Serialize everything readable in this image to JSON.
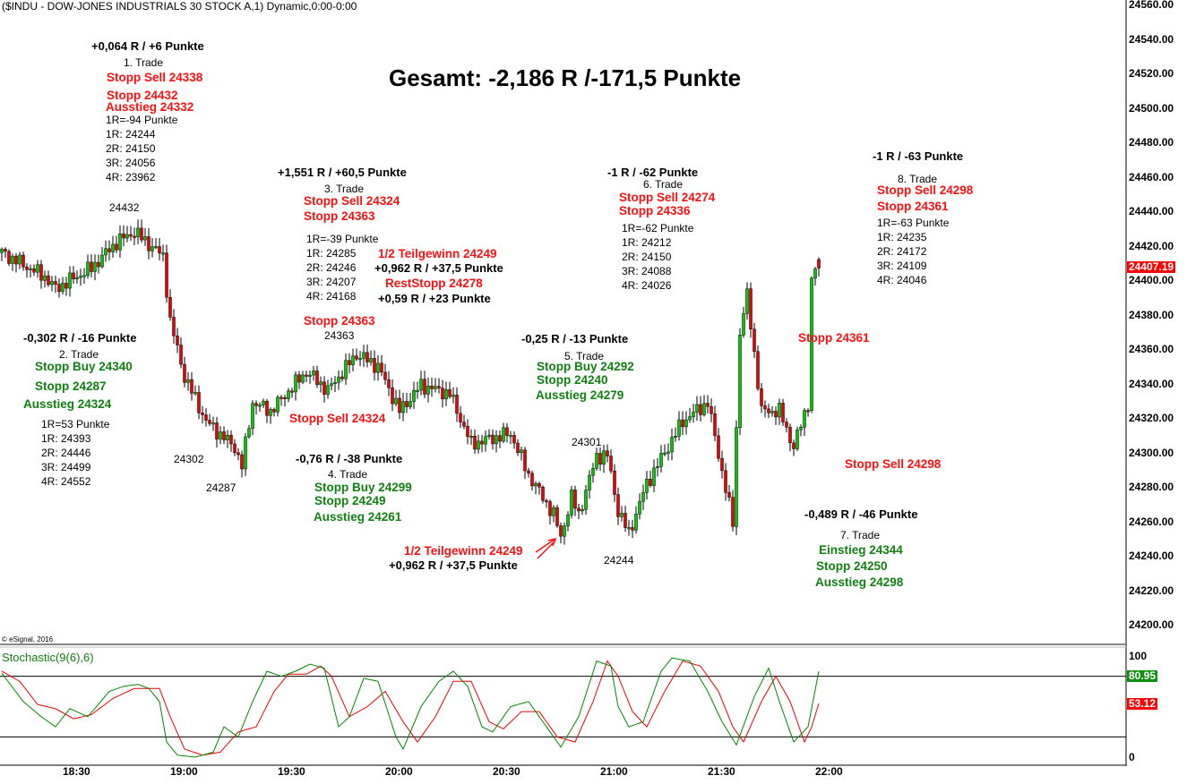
{
  "header": {
    "title": "($INDU - DOW-JONES INDUSTRIALS 30 STOCK A,1) Dynamic,0:00-0:00"
  },
  "total": "Gesamt: -2,186 R /-171,5 Punkte",
  "copyright": "© eSignal, 2016",
  "annotations": [
    {
      "text": "+0,064 R / +6 Punkte",
      "color": "black"
    },
    {
      "text": "1. Trade",
      "color": "black"
    },
    {
      "text": "Stopp Sell 24338",
      "color": "red"
    },
    {
      "text": "Stopp 24432",
      "color": "red"
    },
    {
      "text": "Ausstieg 24332",
      "color": "red"
    },
    {
      "text": "1R=-94 Punkte",
      "color": "black"
    },
    {
      "text": "1R: 24244",
      "color": "black"
    },
    {
      "text": "2R: 24150",
      "color": "black"
    },
    {
      "text": "3R: 24056",
      "color": "black"
    },
    {
      "text": "4R: 23962",
      "color": "black"
    },
    {
      "text": "24432",
      "color": "black"
    },
    {
      "text": "+1,551 R / +60,5 Punkte",
      "color": "black"
    },
    {
      "text": "3. Trade",
      "color": "black"
    },
    {
      "text": "Stopp Sell 24324",
      "color": "red"
    },
    {
      "text": "Stopp 24363",
      "color": "red"
    },
    {
      "text": "1R=-39 Punkte",
      "color": "black"
    },
    {
      "text": "1R: 24285",
      "color": "black"
    },
    {
      "text": "2R: 24246",
      "color": "black"
    },
    {
      "text": "3R: 24207",
      "color": "black"
    },
    {
      "text": "4R: 24168",
      "color": "black"
    },
    {
      "text": "1/2 Teilgewinn 24249",
      "color": "red"
    },
    {
      "text": "+0,962 R / +37,5 Punkte",
      "color": "black"
    },
    {
      "text": "RestStopp 24278",
      "color": "red"
    },
    {
      "text": "+0,59 R / +23 Punkte",
      "color": "black"
    },
    {
      "text": "Stopp 24363",
      "color": "red"
    },
    {
      "text": "24363",
      "color": "black"
    },
    {
      "text": "-0,302 R / -16 Punkte",
      "color": "black"
    },
    {
      "text": "2. Trade",
      "color": "black"
    },
    {
      "text": "Stopp Buy 24340",
      "color": "green"
    },
    {
      "text": "Stopp 24287",
      "color": "green"
    },
    {
      "text": "Ausstieg 24324",
      "color": "green"
    },
    {
      "text": "1R=53 Punkte",
      "color": "black"
    },
    {
      "text": "1R: 24393",
      "color": "black"
    },
    {
      "text": "2R: 24446",
      "color": "black"
    },
    {
      "text": "3R: 24499",
      "color": "black"
    },
    {
      "text": "4R: 24552",
      "color": "black"
    },
    {
      "text": "24302",
      "color": "black"
    },
    {
      "text": "24287",
      "color": "black"
    },
    {
      "text": "Stopp Sell 24324",
      "color": "red"
    },
    {
      "text": "-0,76 R / -38 Punkte",
      "color": "black"
    },
    {
      "text": "4. Trade",
      "color": "black"
    },
    {
      "text": "Stopp Buy 24299",
      "color": "green"
    },
    {
      "text": "Stopp 24249",
      "color": "green"
    },
    {
      "text": "Ausstieg 24261",
      "color": "green"
    },
    {
      "text": "1/2 Teilgewinn 24249",
      "color": "red"
    },
    {
      "text": "+0,962 R / +37,5 Punkte",
      "color": "black"
    },
    {
      "text": "-0,25 R / -13 Punkte",
      "color": "black"
    },
    {
      "text": "5. Trade",
      "color": "black"
    },
    {
      "text": "Stopp Buy 24292",
      "color": "green"
    },
    {
      "text": "Stopp 24240",
      "color": "green"
    },
    {
      "text": "Ausstieg 24279",
      "color": "green"
    },
    {
      "text": "24301",
      "color": "black"
    },
    {
      "text": "24244",
      "color": "black"
    },
    {
      "text": "-1 R / -62 Punkte",
      "color": "black"
    },
    {
      "text": "6. Trade",
      "color": "black"
    },
    {
      "text": "Stopp Sell 24274",
      "color": "red"
    },
    {
      "text": "Stopp 24336",
      "color": "red"
    },
    {
      "text": "1R=-62 Punkte",
      "color": "black"
    },
    {
      "text": "1R: 24212",
      "color": "black"
    },
    {
      "text": "2R: 24150",
      "color": "black"
    },
    {
      "text": "3R: 24088",
      "color": "black"
    },
    {
      "text": "4R: 24026",
      "color": "black"
    },
    {
      "text": "-1 R / -63 Punkte",
      "color": "black"
    },
    {
      "text": "8. Trade",
      "color": "black"
    },
    {
      "text": "Stopp Sell 24298",
      "color": "red"
    },
    {
      "text": "Stopp 24361",
      "color": "red"
    },
    {
      "text": "1R=-63 Punkte",
      "color": "black"
    },
    {
      "text": "1R: 24235",
      "color": "black"
    },
    {
      "text": "2R: 24172",
      "color": "black"
    },
    {
      "text": "3R: 24109",
      "color": "black"
    },
    {
      "text": "4R: 24046",
      "color": "black"
    },
    {
      "text": "Stopp 24361",
      "color": "red"
    },
    {
      "text": "Stopp Sell 24298",
      "color": "red"
    },
    {
      "text": "-0,489 R / -46 Punkte",
      "color": "black"
    },
    {
      "text": "7. Trade",
      "color": "black"
    },
    {
      "text": "Einstieg 24344",
      "color": "green"
    },
    {
      "text": "Stopp 24250",
      "color": "green"
    },
    {
      "text": "Ausstieg 24298",
      "color": "green"
    }
  ],
  "colors": {
    "up": "#00cc00",
    "down": "#ee0000",
    "k_line": "#008800",
    "d_line": "#ee0000",
    "text_red": "#ff1010",
    "text_green": "#108010"
  },
  "chart_data": {
    "type": "candlestick",
    "title": "($INDU - DOW-JONES INDUSTRIALS 30 STOCK A,1) Dynamic,0:00-0:00",
    "bar_interval_minutes": 1,
    "start_time": "18:09",
    "ylim": [
      24190,
      24565
    ],
    "y_ticks": [
      "24560.00",
      "24540.00",
      "24520.00",
      "24500.00",
      "24480.00",
      "24460.00",
      "24440.00",
      "24420.00",
      "24400.00",
      "24380.00",
      "24360.00",
      "24340.00",
      "24320.00",
      "24300.00",
      "24280.00",
      "24260.00",
      "24240.00",
      "24220.00",
      "24200.00"
    ],
    "x_ticks": [
      "18:30",
      "19:00",
      "19:30",
      "20:00",
      "20:30",
      "21:00",
      "21:30",
      "22:00"
    ],
    "last_price": "24407.19",
    "price_path": [
      [
        0,
        24416
      ],
      [
        12,
        24402
      ],
      [
        15,
        24395
      ],
      [
        25,
        24407
      ],
      [
        32,
        24422
      ],
      [
        37,
        24428
      ],
      [
        45,
        24414
      ],
      [
        47,
        24376
      ],
      [
        51,
        24344
      ],
      [
        57,
        24318
      ],
      [
        65,
        24303
      ],
      [
        67,
        24292
      ],
      [
        70,
        24329
      ],
      [
        75,
        24324
      ],
      [
        85,
        24347
      ],
      [
        91,
        24336
      ],
      [
        99,
        24357
      ],
      [
        105,
        24350
      ],
      [
        111,
        24324
      ],
      [
        117,
        24339
      ],
      [
        125,
        24334
      ],
      [
        131,
        24305
      ],
      [
        142,
        24311
      ],
      [
        147,
        24287
      ],
      [
        154,
        24264
      ],
      [
        156,
        24251
      ],
      [
        159,
        24274
      ],
      [
        161,
        24264
      ],
      [
        166,
        24298
      ],
      [
        169,
        24298
      ],
      [
        172,
        24266
      ],
      [
        175,
        24253
      ],
      [
        180,
        24282
      ],
      [
        190,
        24318
      ],
      [
        197,
        24329
      ],
      [
        204,
        24259
      ],
      [
        206,
        24370
      ],
      [
        208,
        24391
      ],
      [
        212,
        24324
      ],
      [
        217,
        24324
      ],
      [
        221,
        24303
      ],
      [
        225,
        24329
      ],
      [
        226,
        24399
      ],
      [
        228,
        24412
      ]
    ],
    "indicator": {
      "name": "Stochastic(9(6),6)",
      "ylim": [
        0,
        100
      ],
      "y_ticks": [
        "100",
        "0"
      ],
      "levels": [
        80,
        20
      ],
      "k_last": "80.95",
      "d_last": "53.12",
      "k": [
        [
          0,
          83
        ],
        [
          6,
          55
        ],
        [
          11,
          40
        ],
        [
          15,
          30
        ],
        [
          19,
          48
        ],
        [
          24,
          40
        ],
        [
          30,
          65
        ],
        [
          34,
          70
        ],
        [
          38,
          72
        ],
        [
          41,
          68
        ],
        [
          44,
          55
        ],
        [
          46,
          15
        ],
        [
          49,
          2
        ],
        [
          54,
          0
        ],
        [
          59,
          5
        ],
        [
          62,
          30
        ],
        [
          66,
          20
        ],
        [
          70,
          55
        ],
        [
          74,
          85
        ],
        [
          78,
          80
        ],
        [
          82,
          85
        ],
        [
          86,
          92
        ],
        [
          90,
          88
        ],
        [
          94,
          30
        ],
        [
          97,
          40
        ],
        [
          101,
          78
        ],
        [
          105,
          75
        ],
        [
          110,
          20
        ],
        [
          112,
          8
        ],
        [
          117,
          50
        ],
        [
          122,
          75
        ],
        [
          126,
          85
        ],
        [
          130,
          70
        ],
        [
          134,
          30
        ],
        [
          137,
          25
        ],
        [
          142,
          50
        ],
        [
          147,
          55
        ],
        [
          152,
          30
        ],
        [
          156,
          10
        ],
        [
          161,
          40
        ],
        [
          166,
          95
        ],
        [
          170,
          90
        ],
        [
          172,
          50
        ],
        [
          175,
          30
        ],
        [
          179,
          35
        ],
        [
          184,
          85
        ],
        [
          187,
          98
        ],
        [
          192,
          95
        ],
        [
          197,
          65
        ],
        [
          201,
          35
        ],
        [
          205,
          12
        ],
        [
          210,
          60
        ],
        [
          214,
          88
        ],
        [
          217,
          55
        ],
        [
          221,
          15
        ],
        [
          225,
          30
        ],
        [
          228,
          85
        ]
      ],
      "d": [
        [
          0,
          85
        ],
        [
          5,
          75
        ],
        [
          10,
          52
        ],
        [
          15,
          48
        ],
        [
          20,
          38
        ],
        [
          25,
          42
        ],
        [
          31,
          58
        ],
        [
          37,
          68
        ],
        [
          44,
          68
        ],
        [
          47,
          40
        ],
        [
          51,
          8
        ],
        [
          56,
          2
        ],
        [
          61,
          5
        ],
        [
          66,
          25
        ],
        [
          71,
          30
        ],
        [
          76,
          65
        ],
        [
          80,
          82
        ],
        [
          85,
          82
        ],
        [
          89,
          90
        ],
        [
          92,
          80
        ],
        [
          97,
          40
        ],
        [
          102,
          50
        ],
        [
          107,
          65
        ],
        [
          112,
          35
        ],
        [
          116,
          15
        ],
        [
          121,
          40
        ],
        [
          126,
          75
        ],
        [
          131,
          75
        ],
        [
          136,
          35
        ],
        [
          140,
          28
        ],
        [
          145,
          45
        ],
        [
          150,
          45
        ],
        [
          155,
          20
        ],
        [
          160,
          15
        ],
        [
          165,
          55
        ],
        [
          169,
          95
        ],
        [
          172,
          80
        ],
        [
          176,
          45
        ],
        [
          180,
          30
        ],
        [
          185,
          65
        ],
        [
          190,
          95
        ],
        [
          195,
          90
        ],
        [
          200,
          65
        ],
        [
          204,
          30
        ],
        [
          207,
          15
        ],
        [
          212,
          55
        ],
        [
          216,
          80
        ],
        [
          220,
          55
        ],
        [
          224,
          15
        ],
        [
          226,
          30
        ],
        [
          228,
          53
        ]
      ]
    }
  }
}
